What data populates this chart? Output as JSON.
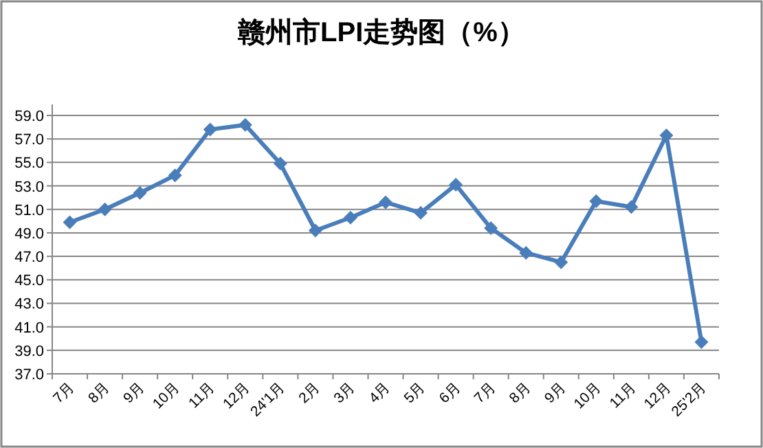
{
  "chart_data": {
    "type": "line",
    "title": "赣州市LPI走势图（%）",
    "categories": [
      "7月",
      "8月",
      "9月",
      "10月",
      "11月",
      "12月",
      "24'1月",
      "2月",
      "3月",
      "4月",
      "5月",
      "6月",
      "7月",
      "8月",
      "9月",
      "10月",
      "11月",
      "12月",
      "25'2月"
    ],
    "series": [
      {
        "color": "#4a7ebb",
        "values": [
          49.9,
          51.0,
          52.4,
          53.9,
          57.8,
          58.2,
          54.9,
          49.2,
          50.3,
          51.6,
          50.7,
          53.1,
          49.4,
          47.3,
          46.5,
          51.7,
          51.2,
          57.3,
          39.7
        ]
      }
    ],
    "ylim": [
      37,
      59
    ],
    "yticks": [
      {
        "value": 37,
        "label": "37.0"
      },
      {
        "value": 39,
        "label": "39.0"
      },
      {
        "value": 41,
        "label": "41.0"
      },
      {
        "value": 43,
        "label": "43.0"
      },
      {
        "value": 45,
        "label": "45.0"
      },
      {
        "value": 47,
        "label": "47.0"
      },
      {
        "value": 49,
        "label": "49.0"
      },
      {
        "value": 51,
        "label": "51.0"
      },
      {
        "value": 53,
        "label": "53.0"
      },
      {
        "value": 55,
        "label": "55.0"
      },
      {
        "value": 57,
        "label": "57.0"
      },
      {
        "value": 59,
        "label": "59.0"
      }
    ],
    "grid": "y",
    "marker": "diamond",
    "line_style": "solid"
  }
}
